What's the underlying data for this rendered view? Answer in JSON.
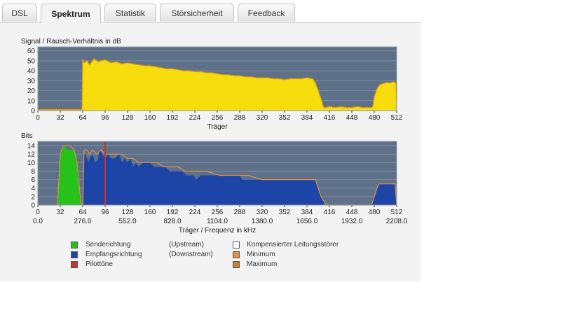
{
  "tabs": [
    {
      "label": "DSL",
      "active": false
    },
    {
      "label": "Spektrum",
      "active": true
    },
    {
      "label": "Statistik",
      "active": false
    },
    {
      "label": "Störsicherheit",
      "active": false
    },
    {
      "label": "Feedback",
      "active": false
    }
  ],
  "colors": {
    "plot_bg": "#5f7189",
    "snr_fill": "#f6dc0c",
    "snr_edge": "#e39a00",
    "upstream": "#25c21b",
    "downstream": "#1d45a8",
    "pilot": "#c83232",
    "minmax": "#e39040"
  },
  "chart_data": [
    {
      "id": "snr",
      "type": "area",
      "title": "Signal / Rausch-Verhältnis in dB",
      "xlabel": "Träger",
      "ylabel": "",
      "xlim": [
        0,
        512
      ],
      "ylim": [
        0,
        64
      ],
      "xticks": [
        0,
        32,
        64,
        96,
        128,
        160,
        192,
        224,
        256,
        288,
        320,
        352,
        384,
        416,
        448,
        480,
        512
      ],
      "yticks": [
        0,
        10,
        20,
        30,
        40,
        50,
        60
      ],
      "grid": true,
      "series": [
        {
          "role": "snr",
          "x": [
            0,
            63,
            64,
            66,
            70,
            74,
            80,
            86,
            90,
            96,
            104,
            112,
            120,
            128,
            136,
            144,
            152,
            160,
            168,
            176,
            184,
            192,
            200,
            208,
            216,
            224,
            232,
            240,
            248,
            256,
            264,
            272,
            280,
            288,
            296,
            304,
            312,
            320,
            328,
            336,
            344,
            352,
            360,
            368,
            376,
            384,
            392,
            396,
            400,
            404,
            407,
            408,
            410,
            412,
            416,
            424,
            432,
            440,
            448,
            456,
            464,
            472,
            476,
            478,
            480,
            484,
            488,
            492,
            496,
            500,
            504,
            508,
            510,
            511,
            512
          ],
          "y": [
            1,
            1,
            52,
            48,
            50,
            46,
            52,
            49,
            50,
            51,
            48,
            49,
            47,
            48,
            47,
            46,
            45,
            45,
            44,
            43,
            42,
            42,
            41,
            40,
            40,
            39,
            39,
            38,
            38,
            37,
            36,
            36,
            35,
            35,
            34,
            34,
            33,
            33,
            33,
            32,
            32,
            31,
            32,
            32,
            32,
            33,
            32,
            28,
            20,
            12,
            5,
            3,
            3,
            3,
            4,
            3,
            4,
            3,
            3,
            4,
            3,
            3,
            3,
            4,
            14,
            22,
            26,
            27,
            28,
            28,
            28,
            29,
            28,
            27,
            0
          ]
        }
      ]
    },
    {
      "id": "bits",
      "type": "area",
      "title": "Bits",
      "xlabel": "Träger / Frequenz in kHz",
      "ylabel": "",
      "xlim": [
        0,
        512
      ],
      "ylim": [
        0,
        15
      ],
      "xticks": [
        0,
        32,
        64,
        96,
        128,
        160,
        192,
        224,
        256,
        288,
        320,
        352,
        384,
        416,
        448,
        480,
        512
      ],
      "freq_ticks": [
        {
          "x": 0,
          "label": "0.0"
        },
        {
          "x": 64,
          "label": "276.0"
        },
        {
          "x": 128,
          "label": "552.0"
        },
        {
          "x": 192,
          "label": "828.0"
        },
        {
          "x": 256,
          "label": "1104.0"
        },
        {
          "x": 320,
          "label": "1380.0"
        },
        {
          "x": 384,
          "label": "1656.0"
        },
        {
          "x": 448,
          "label": "1932.0"
        },
        {
          "x": 512,
          "label": "2208.0"
        }
      ],
      "yticks": [
        0,
        2,
        4,
        6,
        8,
        10,
        12,
        14
      ],
      "grid": true,
      "series": [
        {
          "name": "Senderichtung",
          "role": "upstream",
          "x": [
            28,
            32,
            34,
            38,
            42,
            46,
            50,
            54,
            56,
            60,
            62
          ],
          "y": [
            0,
            12,
            13,
            14,
            13,
            13,
            13,
            12,
            9,
            2,
            0
          ]
        },
        {
          "name": "Empfangsrichtung",
          "role": "downstream",
          "x": [
            65,
            66,
            68,
            72,
            74,
            78,
            82,
            86,
            88,
            92,
            96,
            100,
            104,
            110,
            116,
            120,
            124,
            128,
            132,
            136,
            140,
            144,
            150,
            156,
            160,
            166,
            172,
            176,
            182,
            188,
            194,
            200,
            206,
            212,
            218,
            222,
            226,
            232,
            236,
            240,
            250,
            260,
            270,
            280,
            288,
            292,
            296,
            300,
            310,
            320,
            330,
            340,
            350,
            360,
            370,
            380,
            390,
            396,
            400,
            404,
            408,
            409,
            410,
            412,
            420,
            430,
            440,
            450,
            460,
            470,
            476,
            477,
            478,
            480,
            484,
            488,
            492,
            496,
            500,
            504,
            508,
            510,
            511
          ],
          "y": [
            0,
            12,
            12,
            10,
            11,
            12,
            10,
            11,
            13,
            12,
            11,
            12,
            11,
            11,
            12,
            10,
            11,
            10,
            11,
            9,
            10,
            9,
            10,
            10,
            10,
            9,
            9,
            9,
            9,
            8,
            8,
            8,
            8,
            7,
            7,
            7,
            6,
            7,
            7,
            7,
            7,
            7,
            7,
            7,
            7,
            6,
            6,
            6,
            6,
            6,
            6,
            6,
            6,
            6,
            6,
            6,
            6,
            6,
            4,
            2,
            1,
            0,
            0,
            0,
            0,
            0,
            0,
            0,
            0,
            0,
            0,
            0,
            1,
            2,
            4,
            5,
            5,
            5,
            5,
            5,
            5,
            5,
            0
          ]
        }
      ],
      "maximum_line": {
        "role": "minmax",
        "x": [
          0,
          28,
          32,
          36,
          40,
          46,
          52,
          56,
          60,
          62,
          64,
          66,
          70,
          74,
          78,
          84,
          90,
          96,
          104,
          112,
          120,
          128,
          136,
          144,
          152,
          160,
          170,
          180,
          190,
          200,
          210,
          220,
          230,
          240,
          260,
          280,
          300,
          320,
          340,
          360,
          380,
          396,
          400,
          404,
          408,
          412,
          440,
          476,
          478,
          482,
          486,
          490,
          500,
          510,
          512
        ],
        "y": [
          0,
          0,
          12,
          14,
          14,
          14,
          13,
          10,
          3,
          0,
          0,
          13,
          13,
          12,
          13,
          12,
          13,
          12,
          12,
          12,
          12,
          11,
          11,
          10,
          10,
          10,
          10,
          9,
          9,
          9,
          8,
          8,
          8,
          8,
          7,
          7,
          7,
          6,
          6,
          6,
          6,
          6,
          4,
          2,
          1,
          0,
          0,
          0,
          1,
          3,
          5,
          5,
          5,
          5,
          0
        ]
      },
      "pilot_carrier": 96
    }
  ],
  "legend": {
    "items": [
      {
        "label": "Senderichtung",
        "note": "(Upstream)",
        "color": "#25c21b"
      },
      {
        "label": "Empfangsrichtung",
        "note": "(Downstream)",
        "color": "#1d45a8"
      },
      {
        "label": "Pilottöne",
        "note": "",
        "color": "#c83232"
      }
    ],
    "right_items": [
      {
        "label": "Kompensierter Leitungsstörer",
        "color": "#ffffff"
      },
      {
        "label": "Minimum",
        "color": "#e39040"
      },
      {
        "label": "Maximum",
        "color": "#c88040"
      }
    ]
  }
}
